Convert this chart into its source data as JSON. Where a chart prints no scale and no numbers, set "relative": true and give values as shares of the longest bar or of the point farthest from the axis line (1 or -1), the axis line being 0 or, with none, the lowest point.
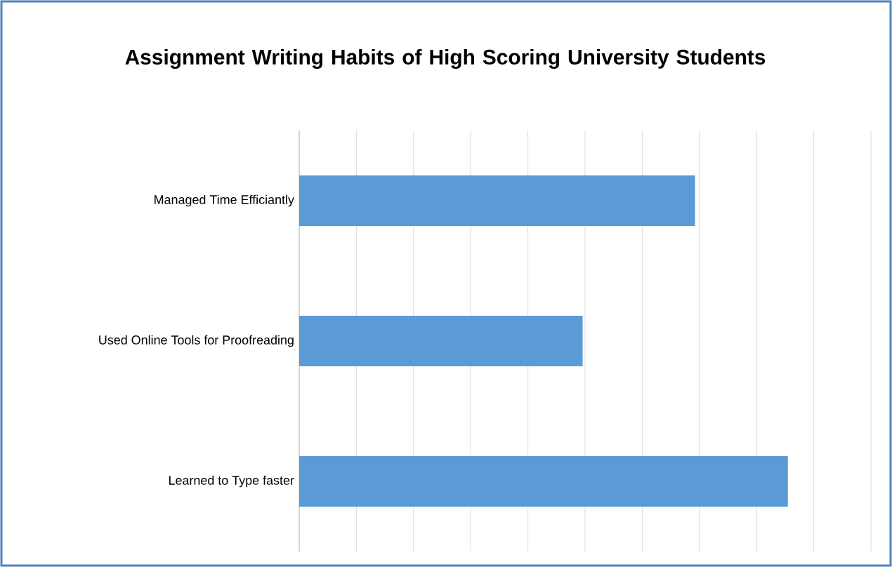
{
  "chart_data": {
    "type": "bar",
    "orientation": "horizontal",
    "relative": true,
    "title": "Assignment Writing Habits of High Scoring University Students",
    "categories": [
      "Managed Time Efficiantly",
      "Used Online Tools for Proofreading",
      "Learned to Type faster"
    ],
    "values": [
      0.81,
      0.58,
      1
    ],
    "color": "#5b9bd5",
    "grid": "x"
  }
}
